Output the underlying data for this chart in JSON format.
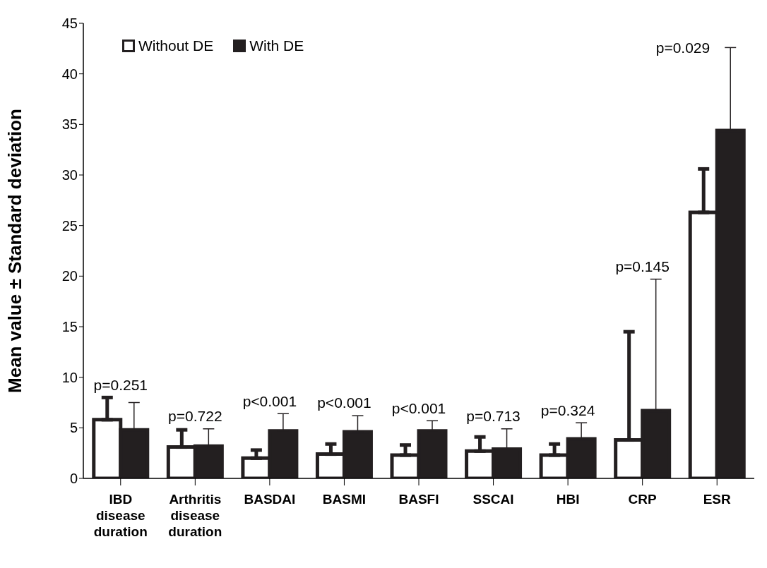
{
  "chart_data": {
    "type": "bar",
    "ylabel": "Mean value ± Standard deviation",
    "categories": [
      "IBD disease duration",
      "Arthritis disease duration",
      "BASDAI",
      "BASMI",
      "BASFI",
      "SSCAI",
      "HBI",
      "CRP",
      "ESR"
    ],
    "series": [
      {
        "name": "Without DE",
        "color": "#ffffff",
        "values": [
          5.8,
          3.1,
          2.0,
          2.4,
          2.3,
          2.7,
          2.3,
          3.8,
          26.3
        ],
        "errors": [
          [
            5.8,
            8.0
          ],
          [
            3.1,
            4.8
          ],
          [
            2.0,
            2.8
          ],
          [
            2.4,
            3.4
          ],
          [
            2.3,
            3.3
          ],
          [
            2.7,
            4.1
          ],
          [
            2.3,
            3.4
          ],
          [
            3.8,
            14.5
          ],
          [
            26.3,
            30.6
          ]
        ]
      },
      {
        "name": "With DE",
        "color": "#231f20",
        "values": [
          4.8,
          3.2,
          4.7,
          4.6,
          4.7,
          2.9,
          3.9,
          6.7,
          34.4
        ],
        "errors": [
          [
            4.8,
            7.5
          ],
          [
            3.2,
            4.9
          ],
          [
            4.7,
            6.4
          ],
          [
            4.6,
            6.2
          ],
          [
            4.7,
            5.7
          ],
          [
            2.9,
            4.9
          ],
          [
            3.9,
            5.5
          ],
          [
            6.7,
            19.7
          ],
          [
            34.4,
            42.6
          ]
        ]
      }
    ],
    "ylim": [
      0,
      45
    ],
    "yticks": [
      0,
      5,
      10,
      15,
      20,
      25,
      30,
      35,
      40,
      45
    ],
    "grid": false,
    "legend": "top left",
    "annotations": [
      "p=0.251",
      "p=0.722",
      "p<0.001",
      "p<0.001",
      "p<0.001",
      "p=0.713",
      "p=0.324",
      "p=0.145",
      "p=0.029"
    ]
  }
}
